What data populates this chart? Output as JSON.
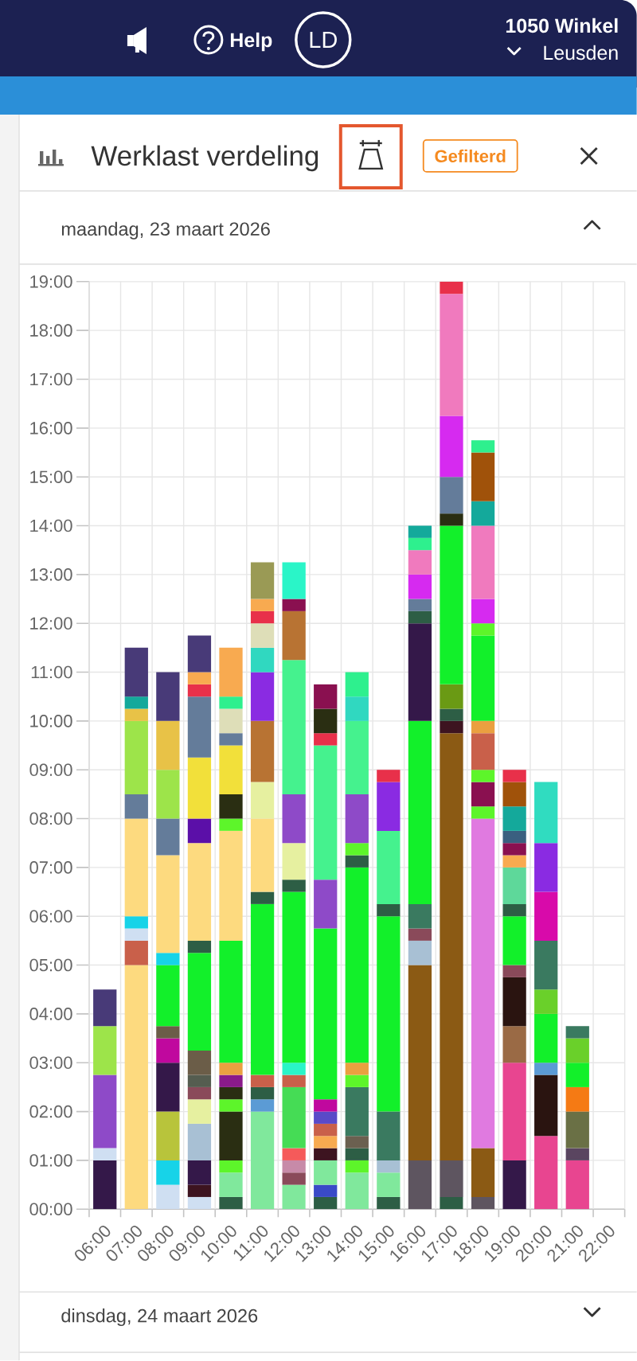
{
  "chart_data": {
    "type": "bar",
    "stacked": true,
    "grid": true,
    "title": "Werklast verdeling",
    "subtitle": "maandag, 23 maart 2026",
    "annotations": [
      "Help",
      "LD",
      "1050 Winkel",
      "Leusden",
      "Gefilterd",
      "dinsdag, 24 maart 2026"
    ],
    "categories": [
      "06:00",
      "07:00",
      "08:00",
      "09:00",
      "10:00",
      "11:00",
      "12:00",
      "13:00",
      "14:00",
      "15:00",
      "16:00",
      "17:00",
      "18:00",
      "19:00",
      "20:00",
      "21:00",
      "22:00"
    ],
    "ylim": [
      0,
      19
    ],
    "yticks": [
      {
        "value": 0,
        "label": "00:00"
      },
      {
        "value": 1,
        "label": "01:00"
      },
      {
        "value": 2,
        "label": "02:00"
      },
      {
        "value": 3,
        "label": "03:00"
      },
      {
        "value": 4,
        "label": "04:00"
      },
      {
        "value": 5,
        "label": "05:00"
      },
      {
        "value": 6,
        "label": "06:00"
      },
      {
        "value": 7,
        "label": "07:00"
      },
      {
        "value": 8,
        "label": "08:00"
      },
      {
        "value": 9,
        "label": "09:00"
      },
      {
        "value": 10,
        "label": "10:00"
      },
      {
        "value": 11,
        "label": "11:00"
      },
      {
        "value": 12,
        "label": "12:00"
      },
      {
        "value": 13,
        "label": "13:00"
      },
      {
        "value": 14,
        "label": "14:00"
      },
      {
        "value": 15,
        "label": "15:00"
      },
      {
        "value": 16,
        "label": "16:00"
      },
      {
        "value": 17,
        "label": "17:00"
      },
      {
        "value": 18,
        "label": "18:00"
      },
      {
        "value": 19,
        "label": "19:00"
      }
    ],
    "series": [
      {
        "values": [
          1.0,
          5.0,
          0.5,
          0.25,
          0.25,
          2.0,
          0.5,
          0.25,
          0.75,
          0.25,
          1.0,
          0.25,
          0.25,
          1.0,
          1.5,
          1.0,
          null
        ],
        "colors": [
          "#341849",
          "#fdda7f",
          "#cfdff2",
          "#cfdff2",
          "#2d5e45",
          "#80e89c",
          "#80e89c",
          "#2d5e45",
          "#80e89c",
          "#2d5e45",
          "#5e5560",
          "#2d5e45",
          "#5e5560",
          "#341849",
          "#e84590",
          "#e84590",
          null
        ]
      },
      {
        "values": [
          0.25,
          0.5,
          0.5,
          0.25,
          0.5,
          0.25,
          0.25,
          0.25,
          0.25,
          0.5,
          4.0,
          0.75,
          1.0,
          2.0,
          1.25,
          0.25,
          null
        ],
        "colors": [
          "#cfdff2",
          "#c9604a",
          "#17d3e8",
          "#3d1420",
          "#80e89c",
          "#5b9bd5",
          "#8a4a5a",
          "#3a4ac8",
          "#5df52a",
          "#80e89c",
          "#8b5a14",
          "#5e5560",
          "#8b5a14",
          "#e84590",
          "#2a1410",
          "#5a4560",
          null
        ]
      },
      {
        "values": [
          1.5,
          0.25,
          1.0,
          0.5,
          0.25,
          0.25,
          0.25,
          0.5,
          0.25,
          0.25,
          0.5,
          8.75,
          6.75,
          0.75,
          0.25,
          0.75,
          null
        ],
        "colors": [
          "#8e4ac8",
          "#cfdff2",
          "#b8c43b",
          "#341849",
          "#5df52a",
          "#2d5e45",
          "#c78aa8",
          "#80e89c",
          "#2d5e45",
          "#a8c0d4",
          "#a8c0d4",
          "#8b5a14",
          "#e07ae0",
          "#9a6a45",
          "#5b9bd5",
          "#6a7045",
          null
        ]
      },
      {
        "values": [
          1.0,
          0.25,
          1.0,
          0.75,
          1.0,
          0.25,
          0.25,
          0.25,
          0.25,
          1.0,
          0.25,
          0.25,
          0.25,
          1.0,
          1.0,
          0.5,
          null
        ],
        "colors": [
          "#9de44a",
          "#17d3e8",
          "#341849",
          "#a8c0d4",
          "#2a2e12",
          "#c9604a",
          "#f55a5a",
          "#3d1420",
          "#6b6050",
          "#3a7a60",
          "#8a4a5a",
          "#3d1420",
          "#5df52a",
          "#2a1410",
          "#12f02a",
          "#f57a14",
          null
        ]
      },
      {
        "values": [
          0.75,
          2.0,
          0.5,
          0.5,
          0.25,
          3.5,
          1.25,
          0.25,
          1.0,
          4.0,
          0.5,
          0.25,
          0.5,
          0.25,
          0.5,
          0.5,
          null
        ],
        "colors": [
          "#483a78",
          "#fdda7f",
          "#c0089e",
          "#e6f0a0",
          "#5df52a",
          "#12f02a",
          "#45dc55",
          "#f8aa50",
          "#3a7a60",
          "#12f02a",
          "#3a7a60",
          "#2d5e45",
          "#8a1050",
          "#8a4a5a",
          "#6ad02a",
          "#12f02a",
          null
        ]
      },
      {
        "values": [
          null,
          0.5,
          0.25,
          0.25,
          0.25,
          0.25,
          0.25,
          0.25,
          0.25,
          0.25,
          3.75,
          0.5,
          0.25,
          1.0,
          1.0,
          0.5,
          null
        ],
        "colors": [
          null,
          "#647c9a",
          "#6b5d48",
          "#8a4a5a",
          "#2a2e12",
          "#2d5e45",
          "#c9604a",
          "#c9604a",
          "#5df52a",
          "#2d5e45",
          "#12f02a",
          "#6a9a14",
          "#5df52a",
          "#12f02a",
          "#3a7a60",
          "#6ad02a",
          null
        ]
      },
      {
        "values": [
          null,
          1.5,
          1.25,
          0.25,
          0.25,
          1.5,
          0.25,
          0.25,
          0.25,
          1.5,
          2.0,
          3.25,
          0.75,
          0.25,
          1.0,
          0.25,
          null
        ],
        "colors": [
          null,
          "#9de44a",
          "#12f02a",
          "#555d50",
          "#8a1a8a",
          "#fdda7f",
          "#2af5c8",
          "#5a4ac8",
          "#eaa040",
          "#45f28e",
          "#341849",
          "#12f02a",
          "#c9604a",
          "#2d5e45",
          "#d80aaa",
          "#3a7a60",
          null
        ]
      },
      {
        "values": [
          null,
          0.25,
          0.25,
          0.5,
          0.25,
          0.75,
          3.5,
          0.25,
          4.0,
          1.0,
          0.25,
          0.25,
          0.25,
          0.75,
          1.0,
          null,
          null
        ],
        "colors": [
          null,
          "#e8c247",
          "#17d3e8",
          "#6b5d48",
          "#eaa040",
          "#e6f0a0",
          "#12f02a",
          "#c0089e",
          "#12f02a",
          "#8a2be2",
          "#2d5e45",
          "#2a2e12",
          "#eaa040",
          "#5ed89a",
          "#8a2be2",
          null,
          null
        ]
      },
      {
        "values": [
          null,
          0.25,
          2.0,
          2.0,
          2.5,
          1.25,
          0.25,
          3.5,
          0.25,
          0.25,
          0.25,
          0.75,
          1.75,
          0.25,
          1.25,
          null,
          null
        ],
        "colors": [
          null,
          "#14a99b",
          "#fdda7f",
          "#12f02a",
          "#12f02a",
          "#b87333",
          "#2d5e45",
          "#12f02a",
          "#2d5e45",
          "#e8304a",
          "#647c9a",
          "#647c9a",
          "#12f02a",
          "#f8aa50",
          "#30dcc0",
          null,
          null
        ]
      },
      {
        "values": [
          null,
          1.0,
          0.75,
          0.25,
          2.25,
          1.0,
          0.75,
          1.0,
          0.25,
          null,
          0.5,
          1.25,
          0.25,
          0.25,
          null,
          null,
          null
        ],
        "colors": [
          null,
          "#483a78",
          "#647c9a",
          "#2d5e45",
          "#fdda7f",
          "#8a2be2",
          "#e6f0a0",
          "#8e4ac8",
          "#5df52a",
          null,
          "#d62af0",
          "#d62af0",
          "#5df52a",
          "#8a1050",
          null,
          null,
          null
        ]
      },
      {
        "values": [
          null,
          null,
          1.0,
          2.0,
          0.25,
          0.5,
          1.0,
          2.75,
          1.0,
          null,
          0.5,
          2.5,
          0.5,
          0.25,
          null,
          null,
          null
        ],
        "colors": [
          null,
          null,
          "#9de44a",
          "#fdda7f",
          "#5df52a",
          "#30d8c0",
          "#8e4ac8",
          "#45f28e",
          "#8e4ac8",
          null,
          "#f07abe",
          "#f07abe",
          "#d62af0",
          "#3a6080",
          null,
          null,
          null
        ]
      },
      {
        "values": [
          null,
          null,
          1.0,
          0.5,
          0.5,
          0.5,
          2.75,
          0.25,
          1.5,
          null,
          0.25,
          0.25,
          1.5,
          0.5,
          null,
          null,
          null
        ],
        "colors": [
          null,
          null,
          "#e8c247",
          "#5b0fa8",
          "#2a2e12",
          "#dedeb8",
          "#45f28e",
          "#e8304a",
          "#45f28e",
          null,
          "#2ef08e",
          "#e8304a",
          "#f07abe",
          "#14a99b",
          null,
          null,
          null
        ]
      },
      {
        "values": [
          null,
          null,
          1.0,
          1.25,
          1.0,
          0.25,
          1.0,
          0.5,
          0.5,
          null,
          0.25,
          null,
          0.5,
          0.5,
          null,
          null,
          null
        ],
        "colors": [
          null,
          null,
          "#483a78",
          "#f2e03a",
          "#f2e03a",
          "#e8304a",
          "#b87333",
          "#2a2e12",
          "#30d8c0",
          null,
          "#14a99b",
          null,
          "#14a99b",
          "#a0520a",
          null,
          null,
          null
        ]
      },
      {
        "values": [
          null,
          null,
          null,
          1.25,
          0.25,
          0.25,
          0.25,
          0.5,
          0.5,
          null,
          null,
          null,
          1.0,
          0.25,
          null,
          null,
          null
        ],
        "colors": [
          null,
          null,
          null,
          "#647c9a",
          "#647c9a",
          "#f8aa50",
          "#8a1050",
          "#8a1050",
          "#2ef08e",
          null,
          null,
          null,
          "#a0520a",
          "#e8304a",
          null,
          null,
          null
        ]
      },
      {
        "values": [
          null,
          null,
          null,
          0.25,
          0.5,
          0.75,
          0.75,
          null,
          null,
          null,
          null,
          null,
          0.25,
          null,
          null,
          null,
          null
        ],
        "colors": [
          null,
          null,
          null,
          "#e8304a",
          "#dedeb8",
          "#9a9a55",
          "#2af5c8",
          null,
          null,
          null,
          null,
          null,
          "#2ef08e",
          null,
          null,
          null,
          null
        ]
      },
      {
        "values": [
          null,
          null,
          null,
          0.25,
          0.25,
          null,
          null,
          null,
          null,
          null,
          null,
          null,
          null,
          null,
          null,
          null,
          null
        ],
        "colors": [
          null,
          null,
          null,
          "#f8aa50",
          "#2ef08e",
          null,
          null,
          null,
          null,
          null,
          null,
          null,
          null,
          null,
          null,
          null,
          null
        ]
      },
      {
        "values": [
          null,
          null,
          null,
          0.75,
          1.0,
          null,
          null,
          null,
          null,
          null,
          null,
          null,
          null,
          null,
          null,
          null,
          null
        ],
        "colors": [
          null,
          null,
          null,
          "#483a78",
          "#f8aa50",
          null,
          null,
          null,
          null,
          null,
          null,
          null,
          null,
          null,
          null,
          null,
          null
        ]
      }
    ]
  }
}
